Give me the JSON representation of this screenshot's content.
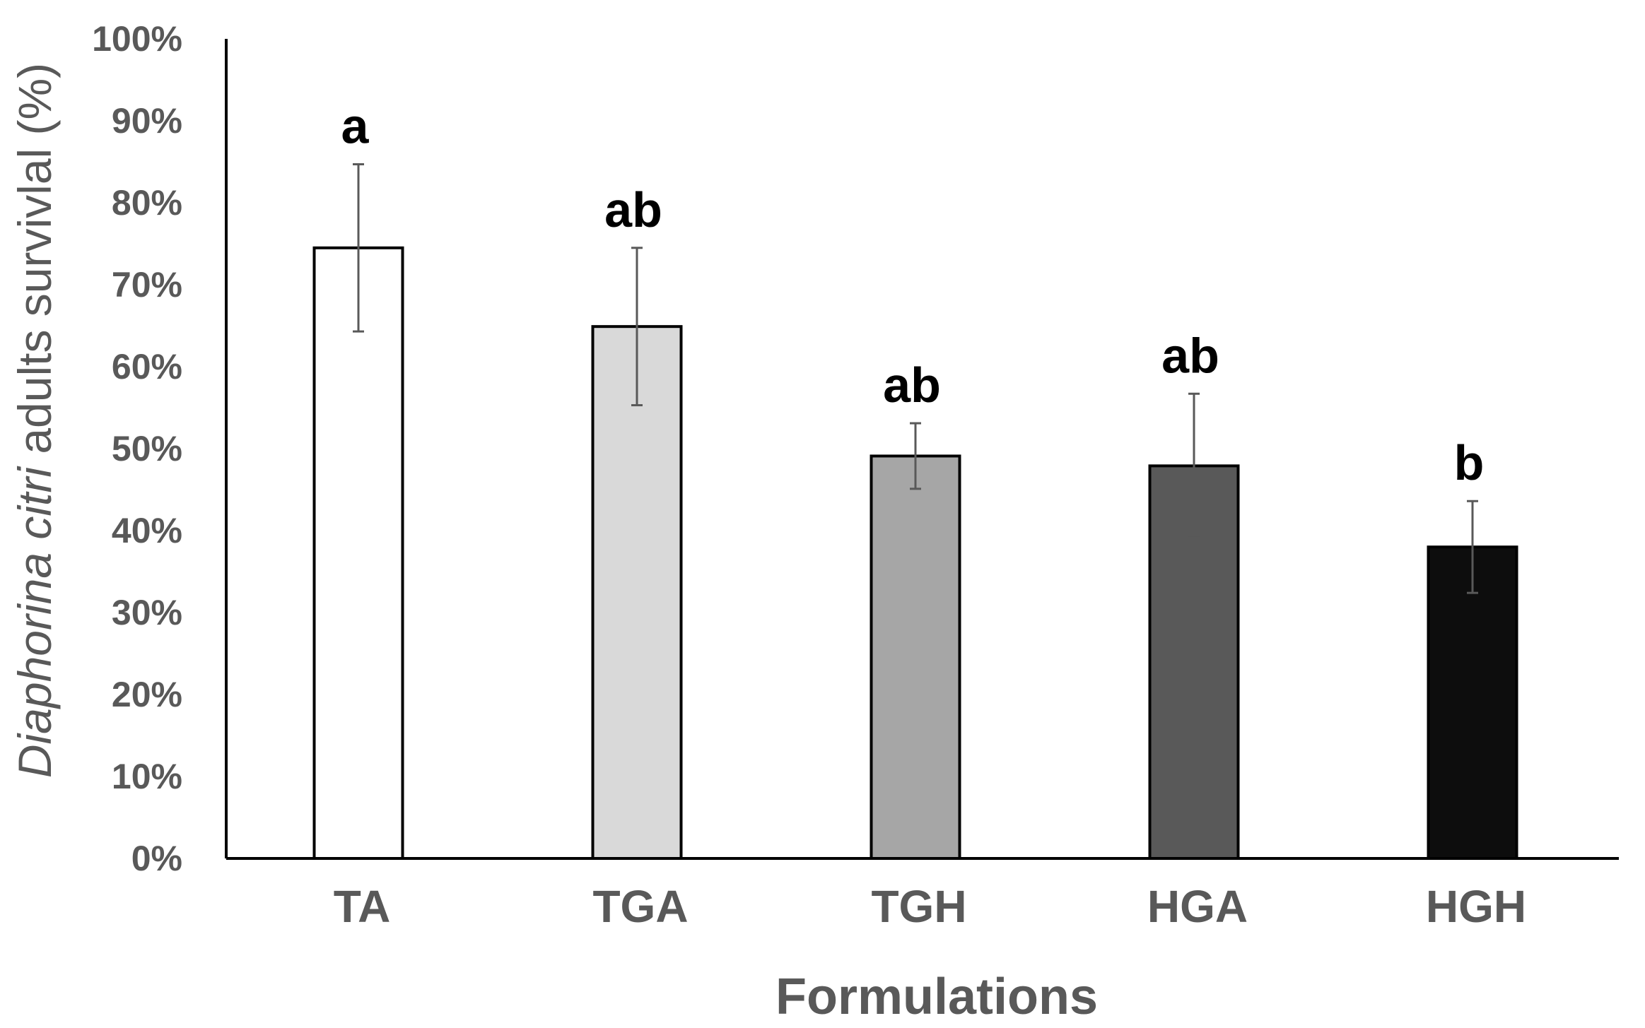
{
  "chart_data": {
    "type": "bar",
    "title": "",
    "xlabel": "Formulations",
    "ylabel_italic": "Diaphorina citri",
    "ylabel_rest": " adults survivlal (%)",
    "categories": [
      "TA",
      "TGA",
      "TGH",
      "HGA",
      "HGH"
    ],
    "values": [
      74.5,
      64.9,
      49.1,
      47.9,
      38.0
    ],
    "errors": [
      10.2,
      9.6,
      4.0,
      8.8,
      5.6
    ],
    "significance": [
      "a",
      "ab",
      "ab",
      "ab",
      "b"
    ],
    "bar_colors": [
      "#ffffff",
      "#d9d9d9",
      "#a6a6a6",
      "#595959",
      "#0d0d0d"
    ],
    "ylim": [
      0,
      100
    ],
    "yticks": [
      0,
      10,
      20,
      30,
      40,
      50,
      60,
      70,
      80,
      90,
      100
    ],
    "ytick_labels": [
      "0%",
      "10%",
      "20%",
      "30%",
      "40%",
      "50%",
      "60%",
      "70%",
      "80%",
      "90%",
      "100%"
    ],
    "grid": false,
    "legend": "none"
  }
}
